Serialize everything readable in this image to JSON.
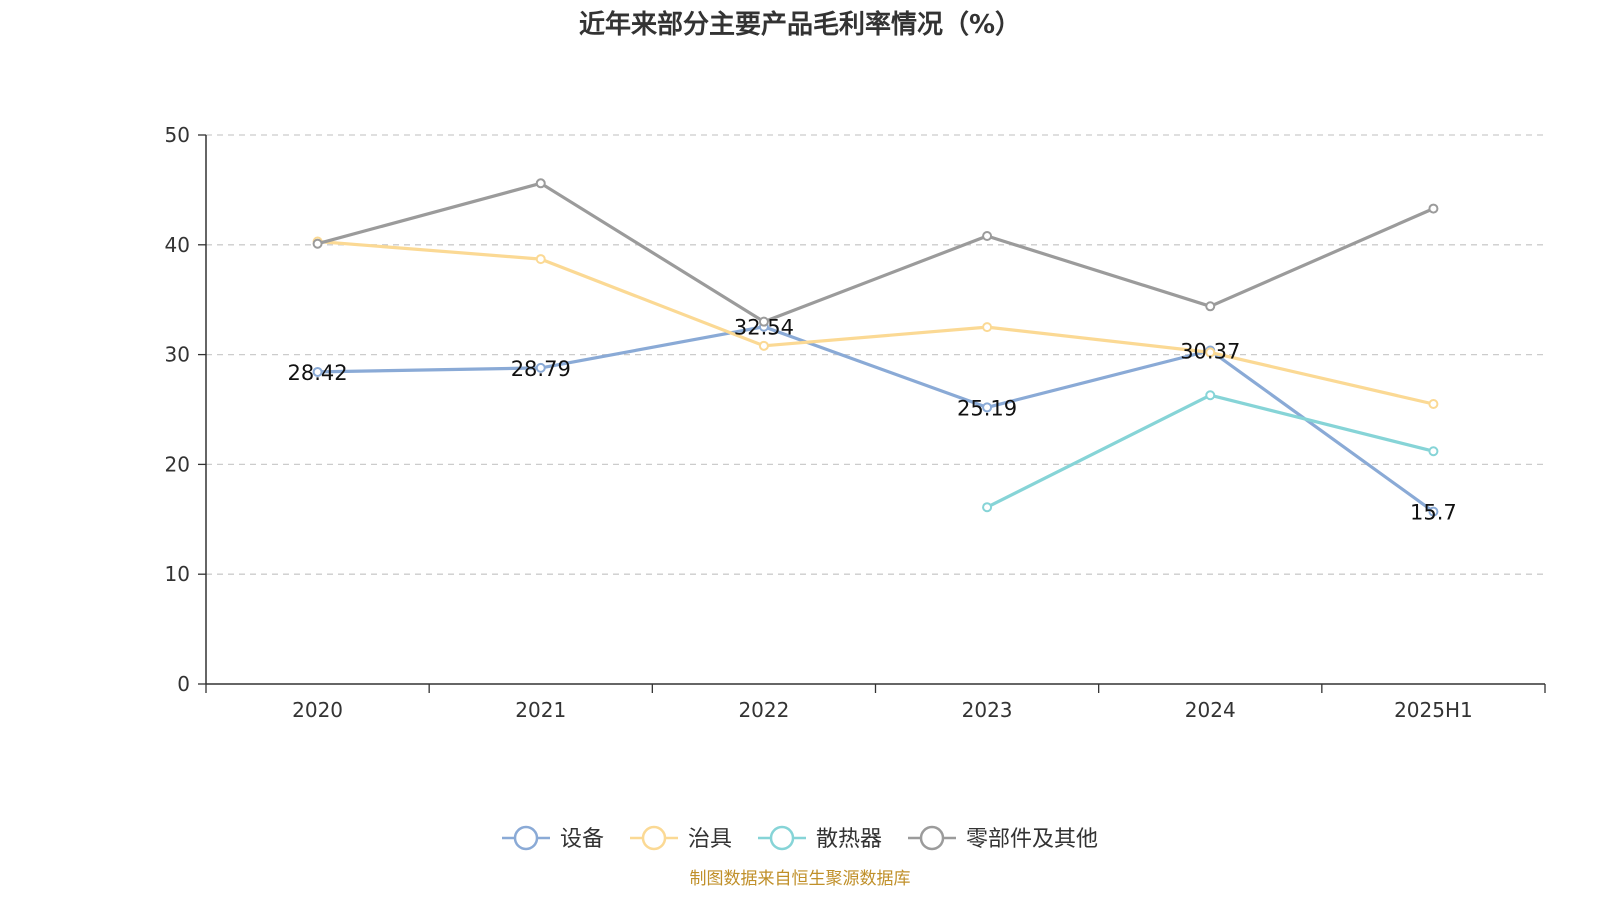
{
  "chart_data": {
    "type": "line",
    "title": "近年来部分主要产品毛利率情况（%）",
    "categories": [
      "2020",
      "2021",
      "2022",
      "2023",
      "2024",
      "2025H1"
    ],
    "ylim": [
      0,
      50
    ],
    "yticks": [
      0,
      10,
      20,
      30,
      40,
      50
    ],
    "grid": true,
    "legend_position": "bottom",
    "series": [
      {
        "name": "设备",
        "color": "#8aaad6",
        "values": [
          28.42,
          28.79,
          32.54,
          25.19,
          30.37,
          15.7
        ],
        "labels": [
          "28.42",
          "28.79",
          "32.54",
          "25.19",
          "30.37",
          "15.7"
        ]
      },
      {
        "name": "治具",
        "color": "#fbd994",
        "values": [
          40.3,
          38.7,
          30.8,
          32.5,
          30.2,
          25.5
        ]
      },
      {
        "name": "散热器",
        "color": "#86d4d7",
        "values": [
          null,
          null,
          null,
          16.1,
          26.3,
          21.2
        ]
      },
      {
        "name": "零部件及其他",
        "color": "#9b9b9b",
        "values": [
          40.1,
          45.6,
          33.0,
          40.8,
          34.4,
          43.3
        ]
      }
    ],
    "source": "制图数据来自恒生聚源数据库"
  }
}
